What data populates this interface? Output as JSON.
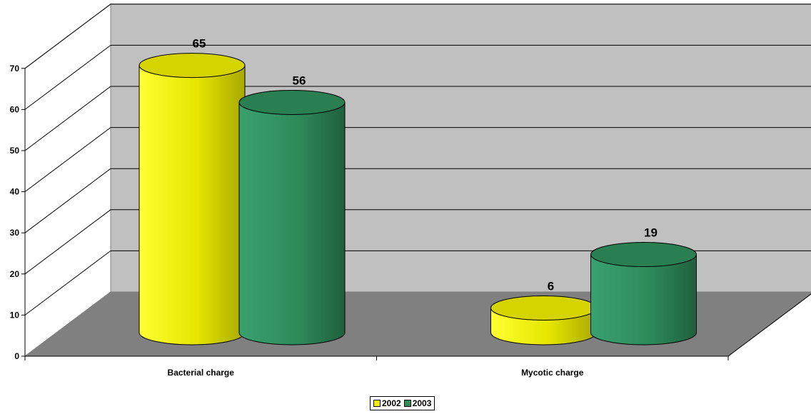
{
  "chart_data": {
    "type": "bar",
    "style": "3d-cylinder",
    "categories": [
      "Bacterial charge",
      "Mycotic charge"
    ],
    "series": [
      {
        "name": "2002",
        "values": [
          65,
          6
        ],
        "color": "#F2F000"
      },
      {
        "name": "2003",
        "values": [
          56,
          19
        ],
        "color": "#2E8B5A"
      }
    ],
    "yticks": [
      "0",
      "10",
      "20",
      "30",
      "40",
      "50",
      "60",
      "70"
    ],
    "ylim": [
      0,
      70
    ],
    "grid": true,
    "legend_position": "bottom",
    "data_labels": true,
    "wall_color": "#C0C0C0",
    "floor_color": "#808080"
  }
}
